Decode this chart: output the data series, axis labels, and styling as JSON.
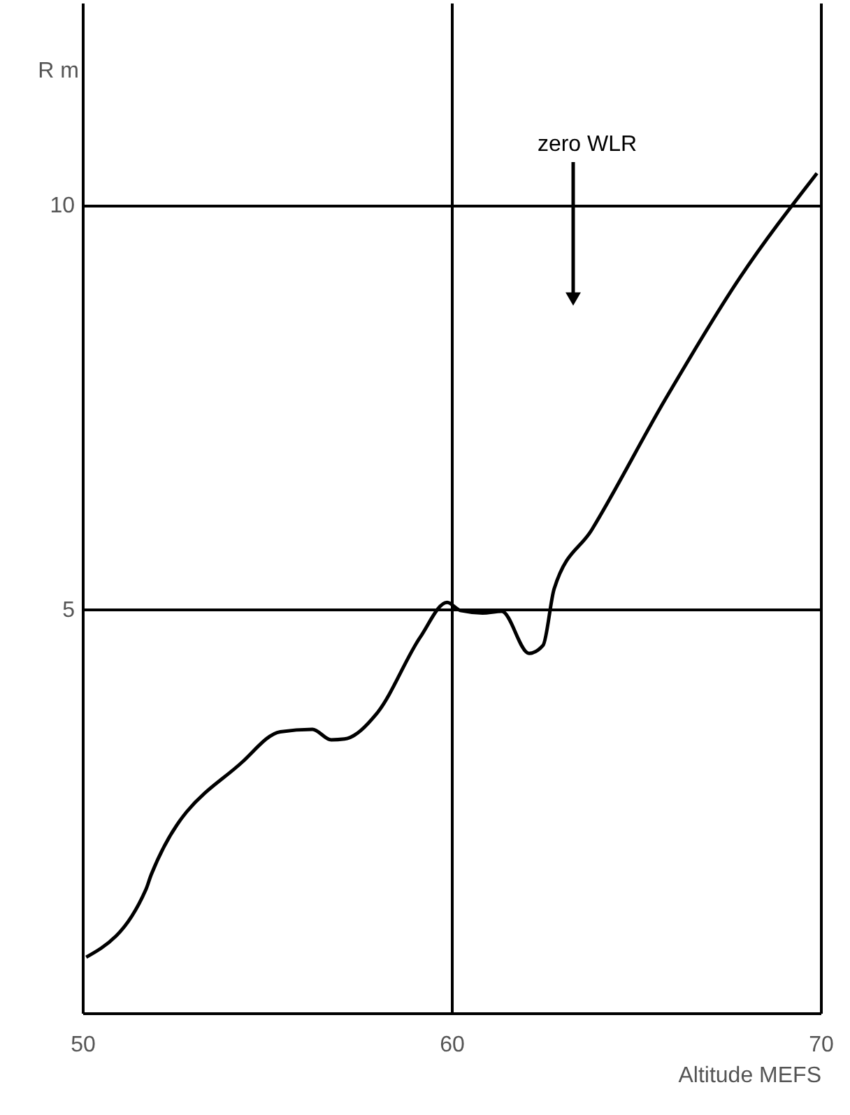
{
  "chart_data": {
    "type": "line",
    "xlabel": "Altitude MEFS",
    "ylabel": "R m",
    "xlim": [
      50,
      70
    ],
    "ylim": [
      0,
      12.5
    ],
    "xticks": [
      50,
      60,
      70
    ],
    "yticks": [
      5,
      10
    ],
    "grid": true,
    "annotations": [
      "zero WLR"
    ],
    "series": [
      {
        "color": "#000000",
        "x": [
          50.1,
          51.72,
          51.86,
          54.34,
          55.36,
          56.23,
          56.74,
          57.1,
          57.98,
          59.15,
          59.88,
          60.24,
          60.84,
          61.36,
          62.1,
          62.48,
          62.78,
          63.8,
          65.8,
          67.8,
          69.9
        ],
        "values": [
          0.69,
          1.53,
          1.71,
          3.11,
          3.48,
          3.51,
          3.38,
          3.39,
          3.71,
          4.65,
          5.08,
          4.98,
          4.95,
          4.97,
          4.45,
          4.55,
          5.25,
          5.98,
          7.6,
          9.09,
          10.39
        ]
      }
    ]
  }
}
